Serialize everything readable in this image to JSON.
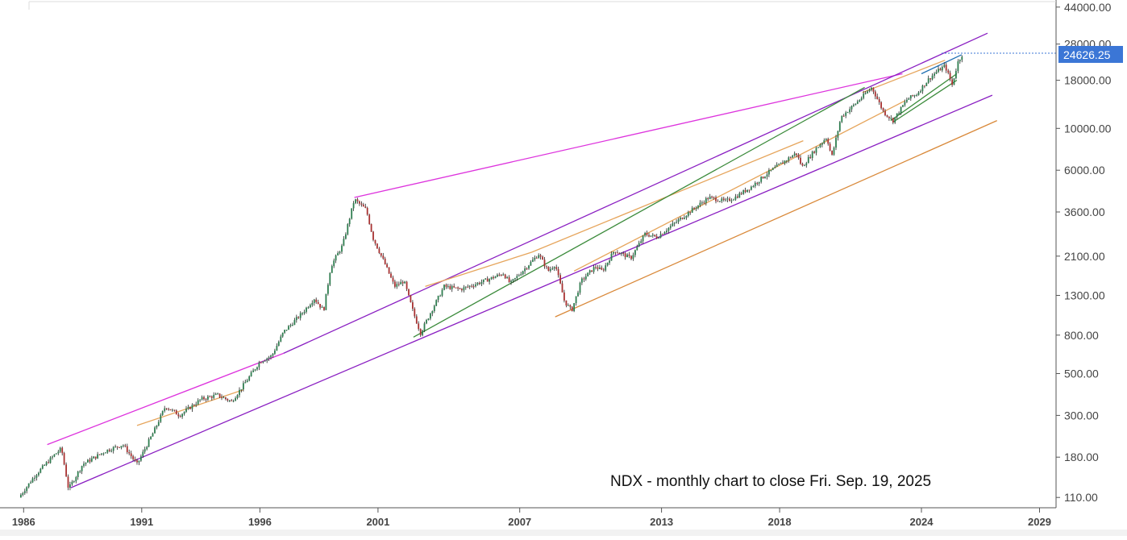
{
  "chart_data": {
    "type": "candlestick",
    "log_scale": true,
    "grid": false,
    "annotation": "NDX - monthly chart to close Fri. Sep. 19, 2025",
    "last_price": 24626.25,
    "last_price_label": "24626.25",
    "x_range": [
      1985.0,
      2029.7
    ],
    "y_range": [
      97,
      48000
    ],
    "y_ticks": [
      {
        "value": 44000,
        "label": "44000.00"
      },
      {
        "value": 28000,
        "label": "28000.00"
      },
      {
        "value": 18000,
        "label": "18000.00"
      },
      {
        "value": 10000,
        "label": "10000.00"
      },
      {
        "value": 6000,
        "label": "6000.00"
      },
      {
        "value": 3600,
        "label": "3600.00"
      },
      {
        "value": 2100,
        "label": "2100.00"
      },
      {
        "value": 1300,
        "label": "1300.00"
      },
      {
        "value": 800,
        "label": "800.00"
      },
      {
        "value": 500,
        "label": "500.00"
      },
      {
        "value": 300,
        "label": "300.00"
      },
      {
        "value": 180,
        "label": "180.00"
      },
      {
        "value": 110,
        "label": "110.00"
      }
    ],
    "x_ticks": [
      {
        "value": 1986,
        "label": "1986"
      },
      {
        "value": 1991,
        "label": "1991"
      },
      {
        "value": 1996,
        "label": "1996"
      },
      {
        "value": 2001,
        "label": "2001"
      },
      {
        "value": 2007,
        "label": "2007"
      },
      {
        "value": 2013,
        "label": "2013"
      },
      {
        "value": 2018,
        "label": "2018"
      },
      {
        "value": 2024,
        "label": "2024"
      },
      {
        "value": 2029,
        "label": "2029"
      }
    ],
    "price_path": [
      [
        1985.8,
        110
      ],
      [
        1986.5,
        145
      ],
      [
        1987.3,
        185
      ],
      [
        1987.6,
        200
      ],
      [
        1987.9,
        122
      ],
      [
        1988.5,
        165
      ],
      [
        1989.5,
        195
      ],
      [
        1990.2,
        210
      ],
      [
        1990.8,
        165
      ],
      [
        1991.5,
        245
      ],
      [
        1992.0,
        335
      ],
      [
        1992.6,
        300
      ],
      [
        1993.5,
        365
      ],
      [
        1994.2,
        385
      ],
      [
        1994.8,
        355
      ],
      [
        1995.5,
        470
      ],
      [
        1996.0,
        580
      ],
      [
        1996.5,
        620
      ],
      [
        1997.0,
        830
      ],
      [
        1997.8,
        1050
      ],
      [
        1998.3,
        1250
      ],
      [
        1998.7,
        1080
      ],
      [
        1999.0,
        1850
      ],
      [
        1999.5,
        2400
      ],
      [
        2000.0,
        4200
      ],
      [
        2000.5,
        3700
      ],
      [
        2000.8,
        2600
      ],
      [
        2001.3,
        1900
      ],
      [
        2001.7,
        1450
      ],
      [
        2002.1,
        1550
      ],
      [
        2002.5,
        1050
      ],
      [
        2002.8,
        820
      ],
      [
        2003.3,
        1100
      ],
      [
        2003.8,
        1450
      ],
      [
        2004.5,
        1400
      ],
      [
        2005.5,
        1550
      ],
      [
        2006.3,
        1700
      ],
      [
        2006.6,
        1500
      ],
      [
        2007.3,
        1850
      ],
      [
        2007.8,
        2150
      ],
      [
        2008.2,
        1750
      ],
      [
        2008.5,
        1900
      ],
      [
        2008.9,
        1200
      ],
      [
        2009.2,
        1080
      ],
      [
        2009.6,
        1550
      ],
      [
        2010.2,
        1850
      ],
      [
        2010.5,
        1750
      ],
      [
        2011.0,
        2250
      ],
      [
        2011.7,
        2050
      ],
      [
        2012.3,
        2750
      ],
      [
        2012.8,
        2650
      ],
      [
        2013.5,
        3100
      ],
      [
        2014.3,
        3700
      ],
      [
        2015.0,
        4300
      ],
      [
        2015.7,
        4100
      ],
      [
        2016.1,
        4300
      ],
      [
        2016.8,
        4900
      ],
      [
        2017.5,
        5800
      ],
      [
        2018.7,
        7400
      ],
      [
        2018.95,
        6250
      ],
      [
        2019.5,
        7700
      ],
      [
        2020.0,
        9000
      ],
      [
        2020.2,
        7000
      ],
      [
        2020.6,
        11500
      ],
      [
        2021.2,
        13500
      ],
      [
        2021.9,
        16500
      ],
      [
        2022.4,
        12200
      ],
      [
        2022.8,
        11000
      ],
      [
        2023.4,
        14300
      ],
      [
        2023.8,
        15200
      ],
      [
        2024.3,
        18200
      ],
      [
        2024.6,
        19800
      ],
      [
        2025.0,
        21500
      ],
      [
        2025.3,
        17000
      ],
      [
        2025.55,
        22500
      ],
      [
        2025.72,
        24626.25
      ]
    ],
    "trendlines": [
      {
        "color": "#dd33dd",
        "from": [
          2000.0,
          4300
        ],
        "to": [
          2023.2,
          19500
        ]
      },
      {
        "color": "#dd33dd",
        "from": [
          1987.0,
          210
        ],
        "to": [
          1997.0,
          640
        ]
      },
      {
        "color": "#8a1fc2",
        "from": [
          1997.0,
          640
        ],
        "to": [
          2026.8,
          32000
        ]
      },
      {
        "color": "#8a1fc2",
        "from": [
          1988.0,
          124
        ],
        "to": [
          2027.0,
          15000
        ]
      },
      {
        "color": "#e6a55c",
        "from": [
          1990.8,
          265
        ],
        "to": [
          1995.3,
          410
        ]
      },
      {
        "color": "#e6a55c",
        "from": [
          2003.0,
          1450
        ],
        "to": [
          2007.5,
          2200
        ]
      },
      {
        "color": "#e6a55c",
        "from": [
          2007.5,
          2200
        ],
        "to": [
          2019.0,
          8600
        ]
      },
      {
        "color": "#e6a55c",
        "from": [
          2009.3,
          1750
        ],
        "to": [
          2023.3,
          14000
        ]
      },
      {
        "color": "#e6a55c",
        "from": [
          2021.5,
          15500
        ],
        "to": [
          2025.0,
          23000
        ]
      },
      {
        "color": "#d9893a",
        "from": [
          2008.5,
          1000
        ],
        "to": [
          2027.2,
          11000
        ]
      },
      {
        "color": "#3a8a3a",
        "from": [
          2002.5,
          780
        ],
        "to": [
          2021.6,
          16500
        ]
      },
      {
        "color": "#3a8a3a",
        "from": [
          2022.7,
          11000
        ],
        "to": [
          2025.5,
          19500
        ]
      },
      {
        "color": "#3a8a3a",
        "from": [
          2022.8,
          10800
        ],
        "to": [
          2025.5,
          18000
        ]
      },
      {
        "color": "#1f6fb2",
        "from": [
          2024.0,
          19500
        ],
        "to": [
          2025.7,
          24600
        ]
      }
    ],
    "colors": {
      "up": "#2e7d4f",
      "down": "#a83232",
      "price_tag": "#3b76d6",
      "axis": "#555555"
    }
  }
}
